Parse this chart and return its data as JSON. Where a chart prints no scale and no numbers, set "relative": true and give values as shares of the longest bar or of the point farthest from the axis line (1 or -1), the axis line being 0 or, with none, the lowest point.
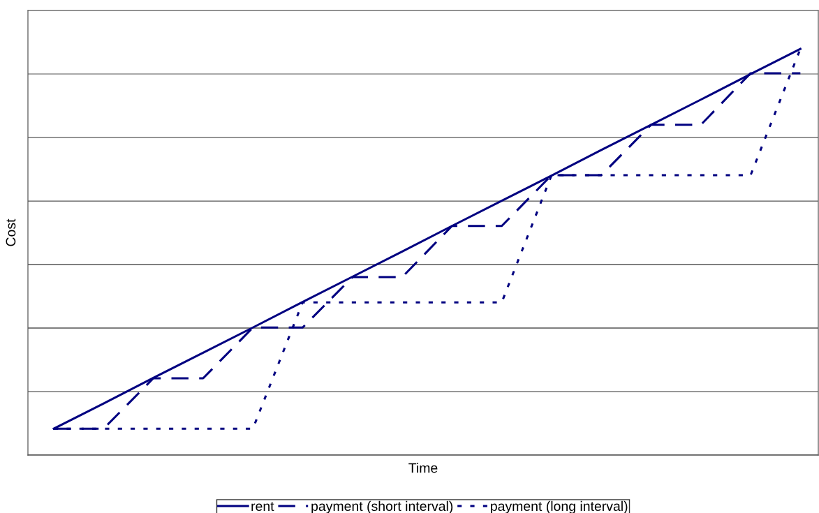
{
  "chart_data": {
    "type": "line",
    "xlabel": "Time",
    "ylabel": "Cost",
    "relative": true,
    "grid": "y",
    "legend": "bottom",
    "tick_labels": false,
    "marker": "none",
    "categories": [
      null,
      null,
      null,
      null,
      null,
      null,
      null,
      null,
      null,
      null,
      null,
      null,
      null,
      null,
      null,
      null
    ],
    "series": [
      {
        "name": "rent",
        "color": "#000080",
        "line_style": "solid",
        "values": [
          0.065,
          0.127,
          0.19,
          0.252,
          0.314,
          0.377,
          0.439,
          0.501,
          0.564,
          0.626,
          0.688,
          0.751,
          0.813,
          0.875,
          0.938,
          1.0
        ]
      },
      {
        "name": "payment (short interval)",
        "color": "#000080",
        "line_style": "dashed",
        "values": [
          0.065,
          0.065,
          0.189,
          0.189,
          0.314,
          0.314,
          0.438,
          0.438,
          0.564,
          0.564,
          0.689,
          0.689,
          0.813,
          0.813,
          0.94,
          0.94
        ]
      },
      {
        "name": "payment (long interval)",
        "color": "#000080",
        "line_style": "dotted",
        "values": [
          0.065,
          0.065,
          0.065,
          0.065,
          0.065,
          0.376,
          0.376,
          0.376,
          0.376,
          0.376,
          0.689,
          0.689,
          0.689,
          0.689,
          0.689,
          1.0
        ]
      }
    ]
  }
}
